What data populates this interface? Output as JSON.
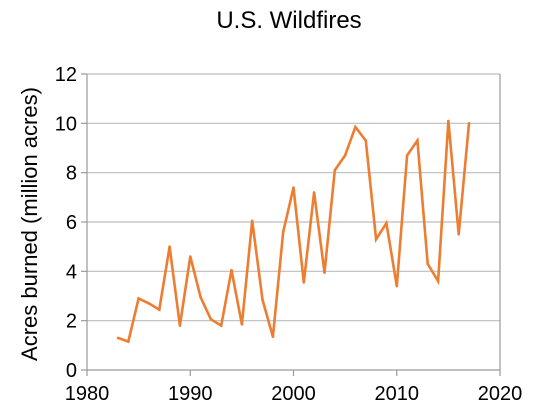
{
  "chart_data": {
    "type": "line",
    "title": "U.S. Wildfires",
    "xlabel": "",
    "ylabel": "Acres burned (million acres)",
    "xlim": [
      1980,
      2020
    ],
    "ylim": [
      0,
      12
    ],
    "xticks": [
      1980,
      1990,
      2000,
      2010,
      2020
    ],
    "yticks": [
      0,
      2,
      4,
      6,
      8,
      10,
      12
    ],
    "grid": "horizontal",
    "legend": "none",
    "line_color": "#ed7d31",
    "series": [
      {
        "x": [
          1983,
          1984,
          1985,
          1986,
          1987,
          1988,
          1989,
          1990,
          1991,
          1992,
          1993,
          1994,
          1995,
          1996,
          1997,
          1998,
          1999,
          2000,
          2001,
          2002,
          2003,
          2004,
          2005,
          2006,
          2007,
          2008,
          2009,
          2010,
          2011,
          2012,
          2013,
          2014,
          2015,
          2016,
          2017
        ],
        "values": [
          1.3,
          1.15,
          2.9,
          2.7,
          2.45,
          5.0,
          1.8,
          4.6,
          2.95,
          2.05,
          1.8,
          4.05,
          1.85,
          6.05,
          2.85,
          1.35,
          5.6,
          7.4,
          3.55,
          7.2,
          3.95,
          8.1,
          8.7,
          9.85,
          9.3,
          5.3,
          5.95,
          3.4,
          8.7,
          9.3,
          4.3,
          3.6,
          10.1,
          5.5,
          10.0
        ]
      }
    ]
  }
}
